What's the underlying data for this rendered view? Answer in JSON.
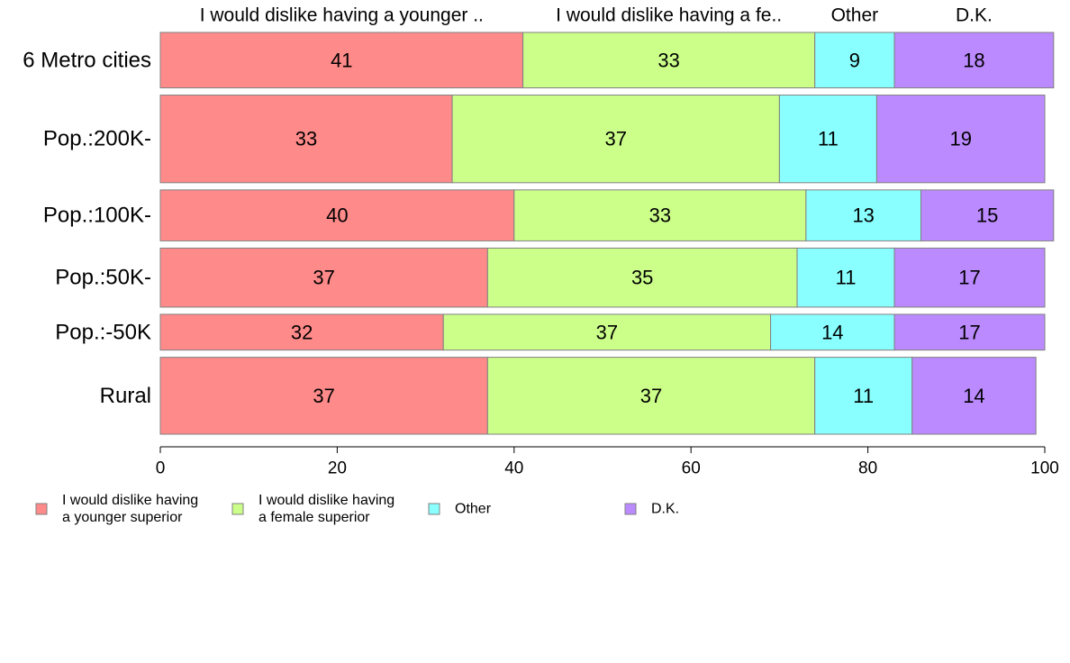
{
  "chart_data": {
    "type": "bar",
    "orientation": "horizontal",
    "stacked": true,
    "column_headers": [
      "I would dislike having a younger ..",
      "I would dislike having a fe..",
      "Other",
      "D.K."
    ],
    "categories": [
      "6 Metro cities",
      "Pop.:200K-",
      "Pop.:100K-",
      "Pop.:50K-",
      "Pop.:-50K",
      "Rural"
    ],
    "category_weights": [
      62,
      98,
      57,
      66,
      40,
      86
    ],
    "series": [
      {
        "name": "I would dislike having a younger superior",
        "legend_lines": [
          "I would dislike having",
          "a younger superior"
        ],
        "color": "#ff8a8a",
        "values": [
          41,
          33,
          40,
          37,
          32,
          37
        ]
      },
      {
        "name": "I would dislike having a female superior",
        "legend_lines": [
          "I would dislike having",
          "a female superior"
        ],
        "color": "#ccff8a",
        "values": [
          33,
          37,
          33,
          35,
          37,
          37
        ]
      },
      {
        "name": "Other",
        "legend_lines": [
          "Other"
        ],
        "color": "#8affff",
        "values": [
          9,
          11,
          13,
          11,
          14,
          11
        ]
      },
      {
        "name": "D.K.",
        "legend_lines": [
          "D.K."
        ],
        "color": "#bb8aff",
        "values": [
          18,
          19,
          15,
          17,
          17,
          14
        ]
      }
    ],
    "xlim": [
      0,
      100
    ],
    "xticks": [
      0,
      20,
      40,
      60,
      80,
      100
    ],
    "grid": false,
    "legend_position": "bottom-left",
    "title": "",
    "xlabel": "",
    "ylabel": ""
  }
}
